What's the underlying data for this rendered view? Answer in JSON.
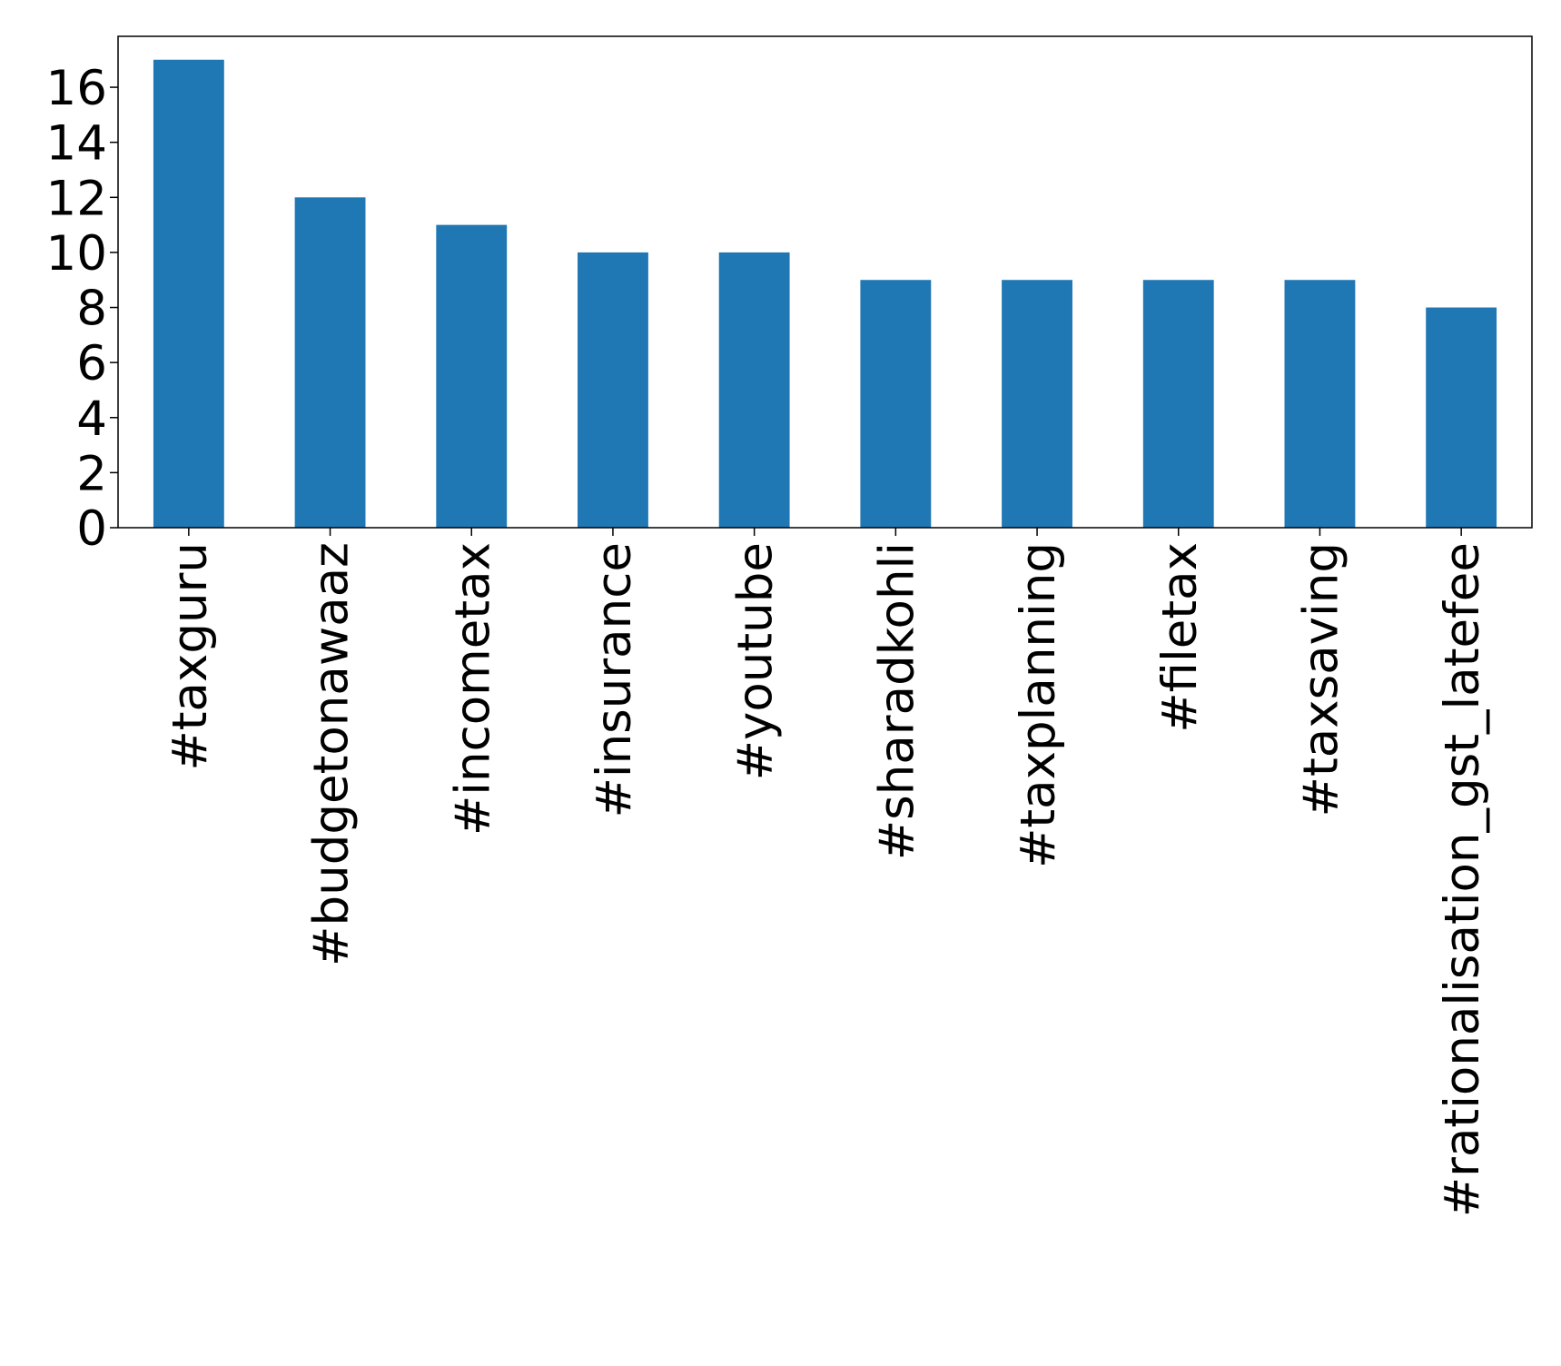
{
  "chart_data": {
    "type": "bar",
    "categories": [
      "#taxguru",
      "#budgetonawaaz",
      "#incometax",
      "#insurance",
      "#youtube",
      "#sharadkohli",
      "#taxplanning",
      "#filetax",
      "#taxsaving",
      "#rationalisation_gst_latefee"
    ],
    "values": [
      17,
      12,
      11,
      10,
      10,
      9,
      9,
      9,
      9,
      8
    ],
    "color": "#1f77b4",
    "ylim": [
      0,
      17.85
    ],
    "yticks": [
      0,
      2,
      4,
      6,
      8,
      10,
      12,
      14,
      16
    ],
    "grid": false
  }
}
